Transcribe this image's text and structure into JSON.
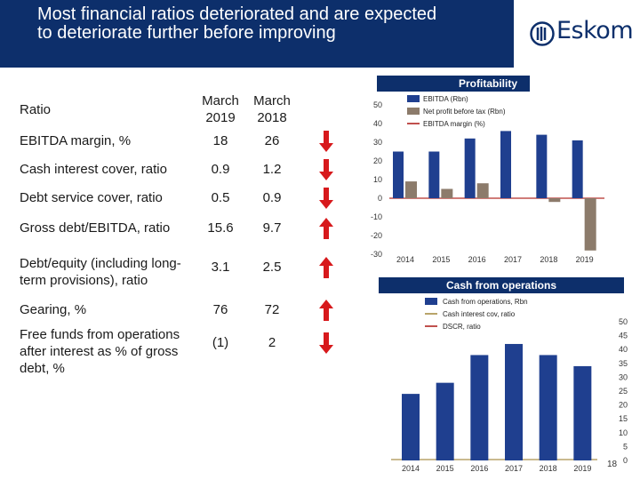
{
  "header": {
    "title": "Most financial ratios deteriorated and are expected to deteriorate further before improving",
    "logo_text": "Eskom"
  },
  "table": {
    "ratio_header": "Ratio",
    "col1_header": "March 2019",
    "col2_header": "March 2018",
    "rows": [
      {
        "label": "EBITDA margin, %",
        "v2019": "18",
        "v2018": "26",
        "trend": "down"
      },
      {
        "label": "Cash interest cover, ratio",
        "v2019": "0.9",
        "v2018": "1.2",
        "trend": "down"
      },
      {
        "label": "Debt service cover, ratio",
        "v2019": "0.5",
        "v2018": "0.9",
        "trend": "down"
      },
      {
        "label": "Gross debt/EBITDA, ratio",
        "v2019": "15.6",
        "v2018": "9.7",
        "trend": "up"
      },
      {
        "label": "Debt/equity (including long-term provisions), ratio",
        "v2019": "3.1",
        "v2018": "2.5",
        "trend": "up"
      },
      {
        "label": "Gearing, %",
        "v2019": "76",
        "v2018": "72",
        "trend": "up"
      },
      {
        "label": "Free funds from operations after interest as % of gross debt, %",
        "v2019": "(1)",
        "v2018": "2",
        "trend": "down"
      }
    ]
  },
  "colors": {
    "navy": "#0d2f6b",
    "arrow_red": "#d7191c",
    "bar_blue": "#1f3f8f",
    "bar_brown": "#8c7b6b",
    "margin_line": "#c0504d",
    "cash_line": "#b9a46a"
  },
  "chart_data": [
    {
      "type": "bar",
      "title": "Profitability",
      "categories": [
        "2014",
        "2015",
        "2016",
        "2017",
        "2018",
        "2019"
      ],
      "ylim": [
        -30,
        50
      ],
      "yticks": [
        -30,
        -20,
        -10,
        0,
        10,
        20,
        30,
        40,
        50
      ],
      "series": [
        {
          "name": "EBITDA (Rbn)",
          "kind": "bar",
          "values": [
            25,
            25,
            32,
            36,
            34,
            31
          ]
        },
        {
          "name": "Net profit before tax (Rbn)",
          "kind": "bar",
          "values": [
            9,
            5,
            8,
            0,
            -2,
            -28
          ]
        },
        {
          "name": "EBITDA margin (%)",
          "kind": "line",
          "values": [
            0,
            0,
            0,
            0,
            0,
            0
          ]
        }
      ]
    },
    {
      "type": "bar",
      "title": "Cash from operations",
      "categories": [
        "2014",
        "2015",
        "2016",
        "2017",
        "2018",
        "2019"
      ],
      "ylim": [
        0,
        50
      ],
      "yticks": [
        0,
        5,
        10,
        15,
        20,
        25,
        30,
        35,
        40,
        45,
        50
      ],
      "series": [
        {
          "name": "Cash from operations, Rbn",
          "kind": "bar",
          "values": [
            24,
            28,
            38,
            42,
            38,
            34
          ]
        },
        {
          "name": "Cash interest cov, ratio",
          "kind": "line",
          "values": [
            0,
            0,
            0,
            0,
            0,
            0
          ]
        },
        {
          "name": "DSCR, ratio",
          "kind": "line",
          "values": [
            0,
            0,
            0,
            0,
            0,
            0
          ]
        }
      ]
    }
  ],
  "page_number": "18"
}
